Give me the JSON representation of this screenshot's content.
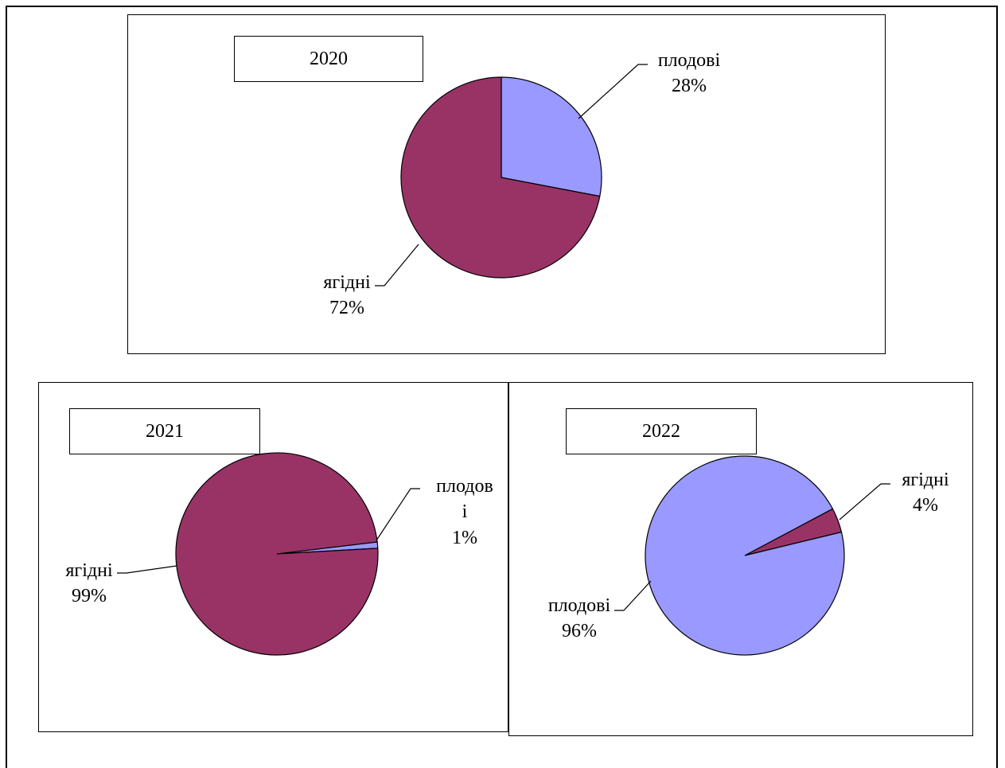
{
  "chart_data": [
    {
      "type": "pie",
      "title": "2020",
      "slices": [
        {
          "label": "плодові",
          "value": 28,
          "display": "28%",
          "color": "#9999FF"
        },
        {
          "label": "ягідні",
          "value": 72,
          "display": "72%",
          "color": "#993366"
        }
      ]
    },
    {
      "type": "pie",
      "title": "2021",
      "slices": [
        {
          "label": "плодов і",
          "value": 1,
          "display": "1%",
          "color": "#9999FF"
        },
        {
          "label": "ягідні",
          "value": 99,
          "display": "99%",
          "color": "#993366"
        }
      ]
    },
    {
      "type": "pie",
      "title": "2022",
      "slices": [
        {
          "label": "ягідні",
          "value": 4,
          "display": "4%",
          "color": "#993366"
        },
        {
          "label": "плодові",
          "value": 96,
          "display": "96%",
          "color": "#9999FF"
        }
      ]
    }
  ]
}
